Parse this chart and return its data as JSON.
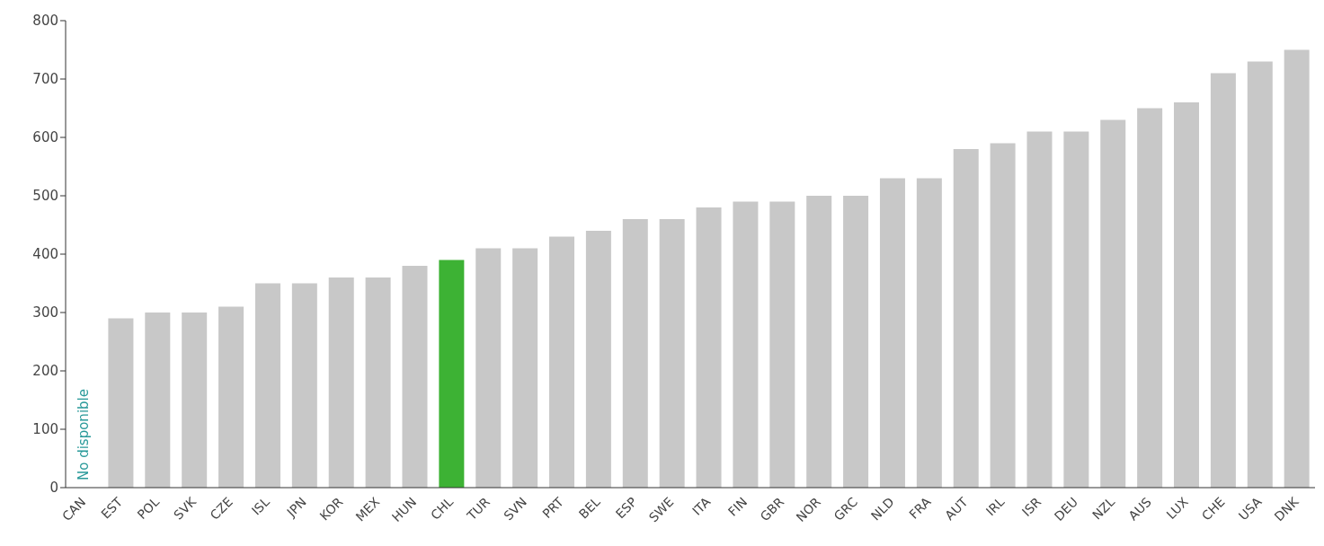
{
  "chart_data": {
    "type": "bar",
    "categories": [
      "CAN",
      "EST",
      "POL",
      "SVK",
      "CZE",
      "ISL",
      "JPN",
      "KOR",
      "MEX",
      "HUN",
      "CHL",
      "TUR",
      "SVN",
      "PRT",
      "BEL",
      "ESP",
      "SWE",
      "ITA",
      "FIN",
      "GBR",
      "NOR",
      "GRC",
      "NLD",
      "FRA",
      "AUT",
      "IRL",
      "ISR",
      "DEU",
      "NZL",
      "AUS",
      "LUX",
      "CHE",
      "USA",
      "DNK"
    ],
    "values": [
      null,
      290,
      300,
      300,
      310,
      350,
      350,
      360,
      360,
      380,
      390,
      410,
      410,
      430,
      440,
      460,
      460,
      480,
      490,
      490,
      500,
      500,
      530,
      530,
      580,
      590,
      610,
      610,
      630,
      650,
      660,
      710,
      730,
      750
    ],
    "colors": [
      "#c8c8c8",
      "#c8c8c8",
      "#c8c8c8",
      "#c8c8c8",
      "#c8c8c8",
      "#c8c8c8",
      "#c8c8c8",
      "#c8c8c8",
      "#c8c8c8",
      "#c8c8c8",
      "#3db234",
      "#c8c8c8",
      "#c8c8c8",
      "#c8c8c8",
      "#c8c8c8",
      "#c8c8c8",
      "#c8c8c8",
      "#c8c8c8",
      "#c8c8c8",
      "#c8c8c8",
      "#c8c8c8",
      "#c8c8c8",
      "#c8c8c8",
      "#c8c8c8",
      "#c8c8c8",
      "#c8c8c8",
      "#c8c8c8",
      "#c8c8c8",
      "#c8c8c8",
      "#c8c8c8",
      "#c8c8c8",
      "#c8c8c8",
      "#c8c8c8",
      "#c8c8c8"
    ],
    "ylim": [
      0,
      800
    ],
    "yticks": [
      0,
      100,
      200,
      300,
      400,
      500,
      600,
      700,
      800
    ],
    "grid": false,
    "annotations": [
      "No disponible"
    ]
  }
}
